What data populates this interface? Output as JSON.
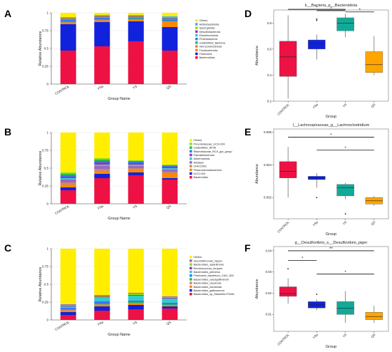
{
  "panel_labels": [
    "A",
    "B",
    "C",
    "D",
    "E",
    "F"
  ],
  "chart_data": [
    {
      "panel": "A",
      "type": "bar",
      "stacked": true,
      "xlabel": "Group Name",
      "ylabel": "Relative Abundance",
      "ylim": [
        0,
        1
      ],
      "yticks": [
        "0",
        "0.25",
        "0.5",
        "0.75",
        "1"
      ],
      "categories": [
        "CONTROL",
        "YSa",
        "YS",
        "QS"
      ],
      "legend_position": "right",
      "series": [
        {
          "name": "Bacteroidota",
          "color": "#ee1144",
          "values": [
            0.47,
            0.53,
            0.6,
            0.47
          ]
        },
        {
          "name": "Firmicutes",
          "color": "#1122dd",
          "values": [
            0.37,
            0.34,
            0.28,
            0.33
          ]
        },
        {
          "name": "Fusobacteriota",
          "color": "#ff8800",
          "values": [
            0.02,
            0.02,
            0.02,
            0.07
          ]
        },
        {
          "name": "Verrucomicrobiota",
          "color": "#cc8866",
          "values": [
            0.01,
            0.01,
            0.01,
            0.01
          ]
        },
        {
          "name": "unidentified_Bacteria",
          "color": "#22bb55",
          "values": [
            0.01,
            0.01,
            0.01,
            0.01
          ]
        },
        {
          "name": "Proteobacteria",
          "color": "#3377ff",
          "values": [
            0.02,
            0.02,
            0.01,
            0.02
          ]
        },
        {
          "name": "Elusimicrobiota",
          "color": "#33cccc",
          "values": [
            0.01,
            0.01,
            0.01,
            0.01
          ]
        },
        {
          "name": "Desulfobacterota",
          "color": "#aa3399",
          "values": [
            0.01,
            0.01,
            0.01,
            0.01
          ]
        },
        {
          "name": "Synergistota",
          "color": "#88dd22",
          "values": [
            0.01,
            0.01,
            0.01,
            0.01
          ]
        },
        {
          "name": "Actinobacteriota",
          "color": "#44aaff",
          "values": [
            0.01,
            0.01,
            0.01,
            0.01
          ]
        },
        {
          "name": "Others",
          "color": "#ffee00",
          "values": [
            0.06,
            0.03,
            0.03,
            0.05
          ]
        }
      ]
    },
    {
      "panel": "B",
      "type": "bar",
      "stacked": true,
      "xlabel": "Group Name",
      "ylabel": "Relative Abundance",
      "ylim": [
        0,
        1
      ],
      "yticks": [
        "0",
        "0.25",
        "0.5",
        "0.75",
        "1"
      ],
      "categories": [
        "CONTROL",
        "YSa",
        "YS",
        "QS"
      ],
      "legend_position": "right",
      "series": [
        {
          "name": "Bacteroides",
          "color": "#ee1144",
          "values": [
            0.19,
            0.36,
            0.4,
            0.34
          ]
        },
        {
          "name": "UCG-004",
          "color": "#1122dd",
          "values": [
            0.04,
            0.06,
            0.04,
            0.02
          ]
        },
        {
          "name": "Phascolarctobacterium",
          "color": "#ff8800",
          "values": [
            0.04,
            0.04,
            0.04,
            0.06
          ]
        },
        {
          "name": "CHKCI001",
          "color": "#cc8866",
          "values": [
            0.03,
            0.03,
            0.02,
            0.03
          ]
        },
        {
          "name": "Alistipes",
          "color": "#9966cc",
          "values": [
            0.04,
            0.04,
            0.03,
            0.03
          ]
        },
        {
          "name": "Akkermansia",
          "color": "#33cccc",
          "values": [
            0.02,
            0.02,
            0.02,
            0.02
          ]
        },
        {
          "name": "Faecalibacterium",
          "color": "#aa3399",
          "values": [
            0.02,
            0.03,
            0.02,
            0.02
          ]
        },
        {
          "name": "Rikenellaceae_RC9_gut_group",
          "color": "#3377ff",
          "values": [
            0.02,
            0.02,
            0.02,
            0.01
          ]
        },
        {
          "name": "unidentified_RF39",
          "color": "#22bb55",
          "values": [
            0.02,
            0.02,
            0.01,
            0.01
          ]
        },
        {
          "name": "Prevotellaceae_UCG-001",
          "color": "#88dd22",
          "values": [
            0.02,
            0.02,
            0.01,
            0.01
          ]
        },
        {
          "name": "Others",
          "color": "#ffee00",
          "values": [
            0.56,
            0.36,
            0.39,
            0.45
          ]
        }
      ]
    },
    {
      "panel": "C",
      "type": "bar",
      "stacked": true,
      "xlabel": "Group Name",
      "ylabel": "Relative Abundance",
      "ylim": [
        0,
        1
      ],
      "yticks": [
        "0",
        "0.25",
        "0.5",
        "0.75",
        "1"
      ],
      "categories": [
        "CONTROL",
        "YSa",
        "YS",
        "QS"
      ],
      "legend_position": "right",
      "series": [
        {
          "name": "Bacteroides_sp_Marseille-P3166",
          "color": "#ee1144",
          "values": [
            0.07,
            0.13,
            0.15,
            0.16
          ]
        },
        {
          "name": "Bacteroides_gallinaceum",
          "color": "#1122dd",
          "values": [
            0.04,
            0.06,
            0.06,
            0.03
          ]
        },
        {
          "name": "Bacteroides_barnesiae",
          "color": "#ff8800",
          "values": [
            0.02,
            0.02,
            0.02,
            0.01
          ]
        },
        {
          "name": "Bacteroides_caecicola",
          "color": "#cc8866",
          "values": [
            0.01,
            0.01,
            0.01,
            0.01
          ]
        },
        {
          "name": "Bacteroides_caecigallinarum",
          "color": "#22bb55",
          "values": [
            0.01,
            0.01,
            0.01,
            0.01
          ]
        },
        {
          "name": "Firmicutes_bacterium_CAG_822",
          "color": "#3377ff",
          "values": [
            0.02,
            0.03,
            0.02,
            0.02
          ]
        },
        {
          "name": "Bacteroides_plebeius",
          "color": "#33cccc",
          "values": [
            0.02,
            0.06,
            0.07,
            0.06
          ]
        },
        {
          "name": "Ruminococcus_torques",
          "color": "#aa3399",
          "values": [
            0.01,
            0.01,
            0.01,
            0.01
          ]
        },
        {
          "name": "Bacteroides_salanitronis",
          "color": "#88dd22",
          "values": [
            0.01,
            0.01,
            0.02,
            0.01
          ]
        },
        {
          "name": "Succinatimonas_hippei",
          "color": "#9966cc",
          "values": [
            0.01,
            0.01,
            0.01,
            0.01
          ]
        },
        {
          "name": "Others",
          "color": "#ffee00",
          "values": [
            0.78,
            0.65,
            0.62,
            0.67
          ]
        }
      ]
    },
    {
      "panel": "D",
      "type": "box",
      "title": "k__Bacteria_p__Bacteroidota",
      "xlabel": "Group",
      "ylabel": "Abundance",
      "ylim": [
        0.2,
        0.9
      ],
      "yticks": [
        "0.2",
        "0.4",
        "0.6",
        "0.8"
      ],
      "categories": [
        "CONTROL",
        "YSa",
        "YS",
        "QS"
      ],
      "colors": [
        "#ee1144",
        "#1122dd",
        "#11aa99",
        "#ffa500"
      ],
      "boxes": [
        {
          "min": 0.22,
          "q1": 0.39,
          "median": 0.54,
          "q3": 0.66,
          "max": 0.86
        },
        {
          "min": 0.52,
          "q1": 0.6,
          "median": 0.64,
          "q3": 0.67,
          "max": 0.71
        },
        {
          "min": 0.69,
          "q1": 0.74,
          "median": 0.8,
          "q3": 0.84,
          "max": 0.87
        },
        {
          "min": 0.4,
          "q1": 0.42,
          "median": 0.48,
          "q3": 0.58,
          "max": 0.7
        }
      ],
      "outliers": [
        {
          "group": 1,
          "value": 0.82
        },
        {
          "group": 1,
          "value": 0.83
        }
      ],
      "significance": [
        {
          "from": 0,
          "to": 2,
          "label": "*",
          "y": 0.905
        },
        {
          "from": 1,
          "to": 2,
          "label": "*",
          "y": 0.895
        },
        {
          "from": 2,
          "to": 3,
          "label": "*",
          "y": 0.885
        }
      ]
    },
    {
      "panel": "E",
      "type": "box",
      "title": "l__Lachnospiraceae_g__Lachnoclostridium",
      "xlabel": "Group",
      "ylabel": "Abundance",
      "ylim": [
        0.0007,
        0.0062
      ],
      "yticks": [
        "0.002",
        "0.004",
        "0.006"
      ],
      "categories": [
        "CONTROL",
        "YSa",
        "YS",
        "QS"
      ],
      "colors": [
        "#ee1144",
        "#1122dd",
        "#11aa99",
        "#ffa500"
      ],
      "boxes": [
        {
          "min": 0.002,
          "q1": 0.0032,
          "median": 0.0036,
          "q3": 0.0042,
          "max": 0.0051
        },
        {
          "min": 0.0026,
          "q1": 0.0031,
          "median": 0.0032,
          "q3": 0.0033,
          "max": 0.0035
        },
        {
          "min": 0.0019,
          "q1": 0.0021,
          "median": 0.0026,
          "q3": 0.0028,
          "max": 0.0029
        },
        {
          "min": 0.0015,
          "q1": 0.0016,
          "median": 0.0018,
          "q3": 0.002,
          "max": 0.0021
        }
      ],
      "outliers": [
        {
          "group": 1,
          "value": 0.002
        },
        {
          "group": 2,
          "value": 0.001
        }
      ],
      "significance": [
        {
          "from": 0,
          "to": 3,
          "label": "*",
          "y": 0.0057
        },
        {
          "from": 1,
          "to": 3,
          "label": "*",
          "y": 0.0049
        }
      ]
    },
    {
      "panel": "F",
      "type": "box",
      "title": "g__Desulfovibrio_s__Desulfovibrio_piger",
      "xlabel": "Group",
      "ylabel": "Abundance",
      "ylim": [
        0.002,
        0.042
      ],
      "yticks": [
        "0.01",
        "0.02",
        "0.03",
        "0.04"
      ],
      "categories": [
        "CONTROL",
        "YSa",
        "YS",
        "QS"
      ],
      "colors": [
        "#ee1144",
        "#1122dd",
        "#11aa99",
        "#ffa500"
      ],
      "boxes": [
        {
          "min": 0.015,
          "q1": 0.0185,
          "median": 0.0198,
          "q3": 0.023,
          "max": 0.027
        },
        {
          "min": 0.012,
          "q1": 0.013,
          "median": 0.0145,
          "q3": 0.016,
          "max": 0.017
        },
        {
          "min": 0.006,
          "q1": 0.01,
          "median": 0.013,
          "q3": 0.016,
          "max": 0.021
        },
        {
          "min": 0.006,
          "q1": 0.0075,
          "median": 0.009,
          "q3": 0.011,
          "max": 0.014
        }
      ],
      "outliers": [
        {
          "group": 0,
          "value": 0.0315
        },
        {
          "group": 1,
          "value": 0.0195
        }
      ],
      "significance": [
        {
          "from": 0,
          "to": 1,
          "label": "*",
          "y": 0.0355
        },
        {
          "from": 0,
          "to": 3,
          "label": "**",
          "y": 0.04
        },
        {
          "from": 1,
          "to": 3,
          "label": "*",
          "y": 0.029
        }
      ]
    }
  ]
}
